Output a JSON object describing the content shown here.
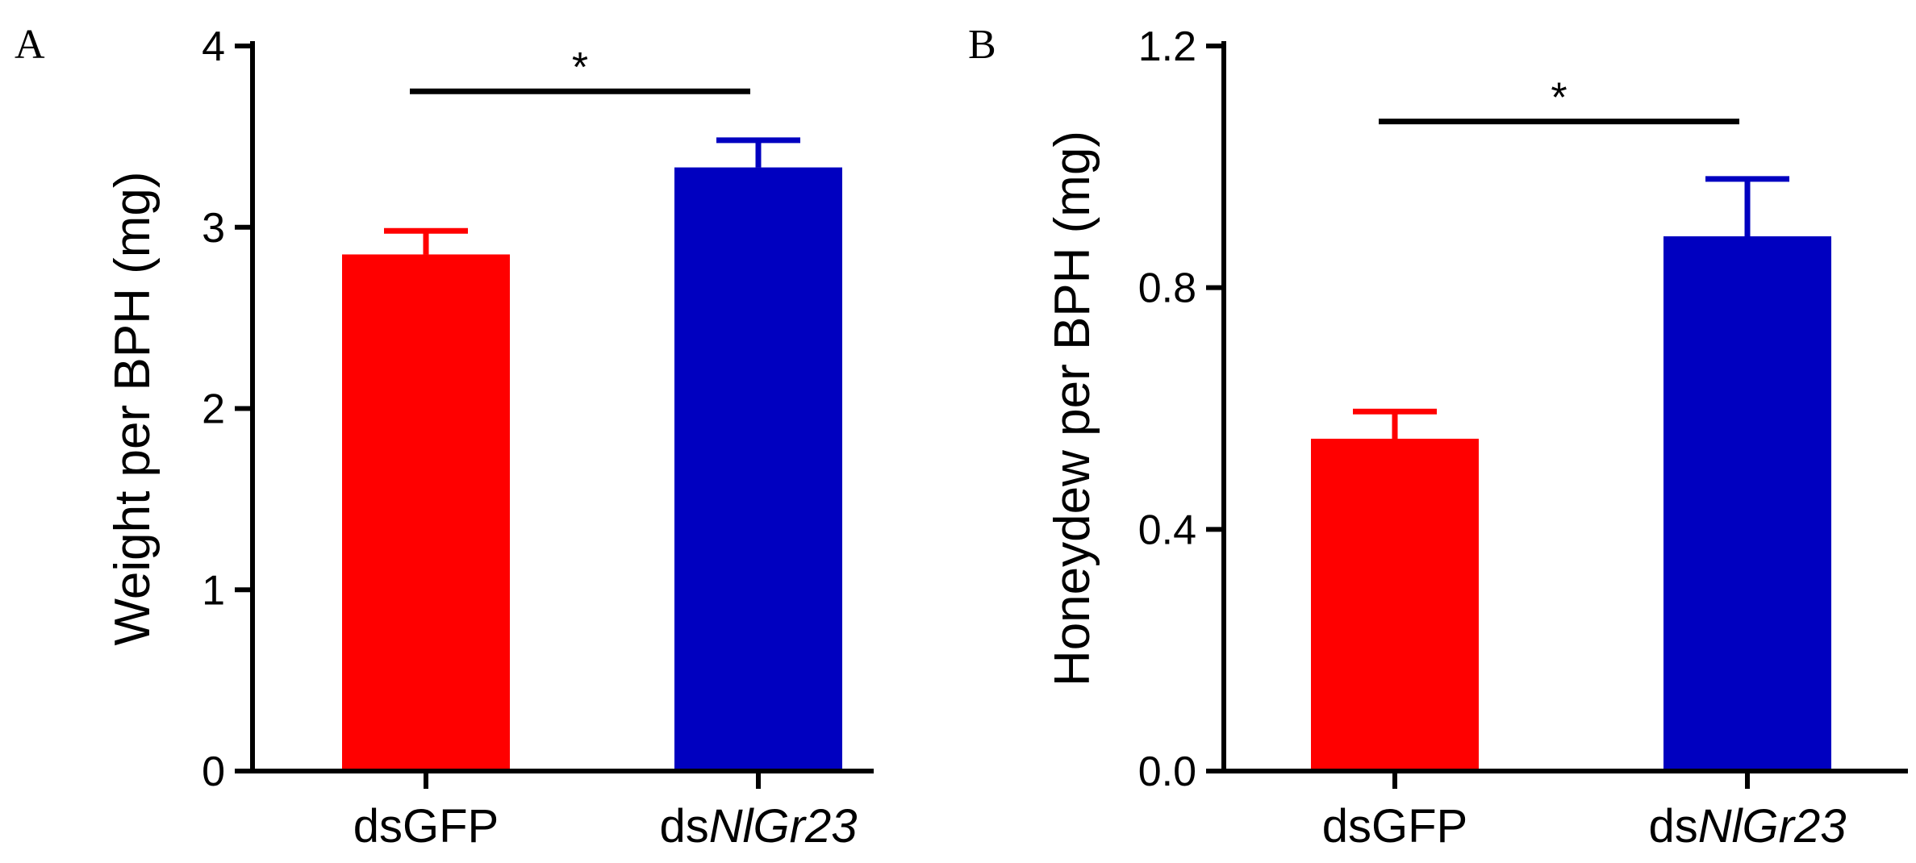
{
  "chart_data": [
    {
      "type": "bar",
      "panel_label": "A",
      "categories": [
        {
          "prefix": "ds",
          "gene": "GFP",
          "gene_italic": false
        },
        {
          "prefix": "ds",
          "gene": "NlGr23",
          "gene_italic": true
        }
      ],
      "values": [
        2.85,
        3.33
      ],
      "errors": [
        0.13,
        0.15
      ],
      "colors": [
        "#ff0000",
        "#0000c0"
      ],
      "ylabel": "Weight per BPH (mg)",
      "ylim": [
        0,
        4
      ],
      "yticks": [
        "0",
        "1",
        "2",
        "3",
        "4"
      ],
      "significance": {
        "between": [
          0,
          1
        ],
        "y": 3.75,
        "label": "*"
      }
    },
    {
      "type": "bar",
      "panel_label": "B",
      "categories": [
        {
          "prefix": "ds",
          "gene": "GFP",
          "gene_italic": false
        },
        {
          "prefix": "ds",
          "gene": "NlGr23",
          "gene_italic": true
        }
      ],
      "values": [
        0.55,
        0.885
      ],
      "errors": [
        0.045,
        0.095
      ],
      "colors": [
        "#ff0000",
        "#0000c0"
      ],
      "ylabel": "Honeydew per BPH (mg)",
      "ylim": [
        0,
        1.2
      ],
      "yticks": [
        "0.0",
        "0.4",
        "0.8",
        "1.2"
      ],
      "significance": {
        "between": [
          0,
          1
        ],
        "y": 1.075,
        "label": "*"
      }
    }
  ]
}
